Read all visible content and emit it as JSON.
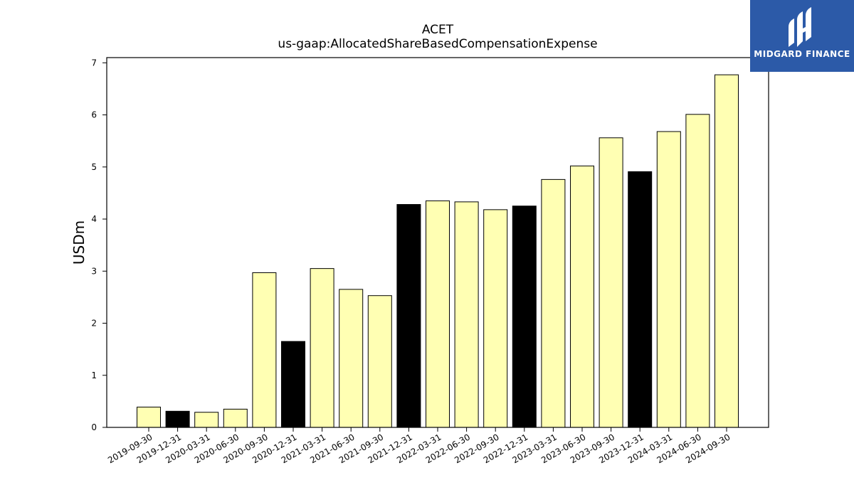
{
  "chart_data": {
    "type": "bar",
    "title": "ACET",
    "subtitle": "us-gaap:AllocatedShareBasedCompensationExpense",
    "xlabel": "",
    "ylabel": "USDm",
    "ylim": [
      0,
      7.1
    ],
    "yticks": [
      0,
      1,
      2,
      3,
      4,
      5,
      6,
      7
    ],
    "categories": [
      "2019-09-30",
      "2019-12-31",
      "2020-03-31",
      "2020-06-30",
      "2020-09-30",
      "2020-12-31",
      "2021-03-31",
      "2021-06-30",
      "2021-09-30",
      "2021-12-31",
      "2022-03-31",
      "2022-06-30",
      "2022-09-30",
      "2022-12-31",
      "2023-03-31",
      "2023-06-30",
      "2023-09-30",
      "2023-12-31",
      "2024-03-31",
      "2024-06-30",
      "2024-09-30"
    ],
    "values": [
      0.39,
      0.31,
      0.29,
      0.35,
      2.97,
      1.65,
      3.05,
      2.65,
      2.53,
      4.28,
      4.35,
      4.33,
      4.18,
      4.25,
      4.76,
      5.02,
      5.56,
      4.91,
      5.68,
      6.01,
      6.77
    ],
    "bar_colors": [
      "#ffffb3",
      "#000000",
      "#ffffb3",
      "#ffffb3",
      "#ffffb3",
      "#000000",
      "#ffffb3",
      "#ffffb3",
      "#ffffb3",
      "#000000",
      "#ffffb3",
      "#ffffb3",
      "#ffffb3",
      "#000000",
      "#ffffb3",
      "#ffffb3",
      "#ffffb3",
      "#000000",
      "#ffffb3",
      "#ffffb3",
      "#ffffb3"
    ],
    "grid": false,
    "legend": "none"
  },
  "logo": {
    "text": "MIDGARD FINANCE",
    "color": "#2c5aa8"
  }
}
